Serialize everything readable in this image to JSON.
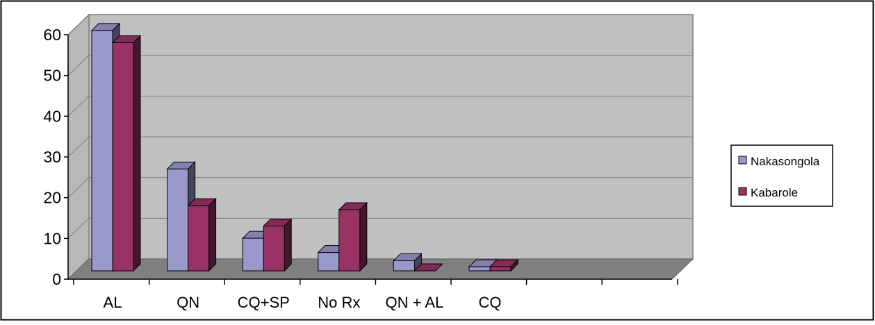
{
  "chart_data": {
    "type": "bar",
    "title": "",
    "xlabel": "",
    "ylabel": "",
    "ylim": [
      0,
      60
    ],
    "yticks": [
      "0",
      "10",
      "20",
      "30",
      "40",
      "50",
      "60"
    ],
    "grid": true,
    "legend_position": "right",
    "categories": [
      "AL",
      "QN",
      "CQ+SP",
      "No Rx",
      "QN + AL",
      "CQ",
      "",
      ""
    ],
    "series": [
      {
        "name": "Nakasongola",
        "color": "#9999cc",
        "values": [
          59,
          25,
          8,
          4.5,
          2.5,
          1,
          null,
          null
        ]
      },
      {
        "name": "Kabarole",
        "color": "#993366",
        "values": [
          56,
          16,
          11,
          15,
          0,
          1,
          null,
          null
        ]
      }
    ]
  }
}
